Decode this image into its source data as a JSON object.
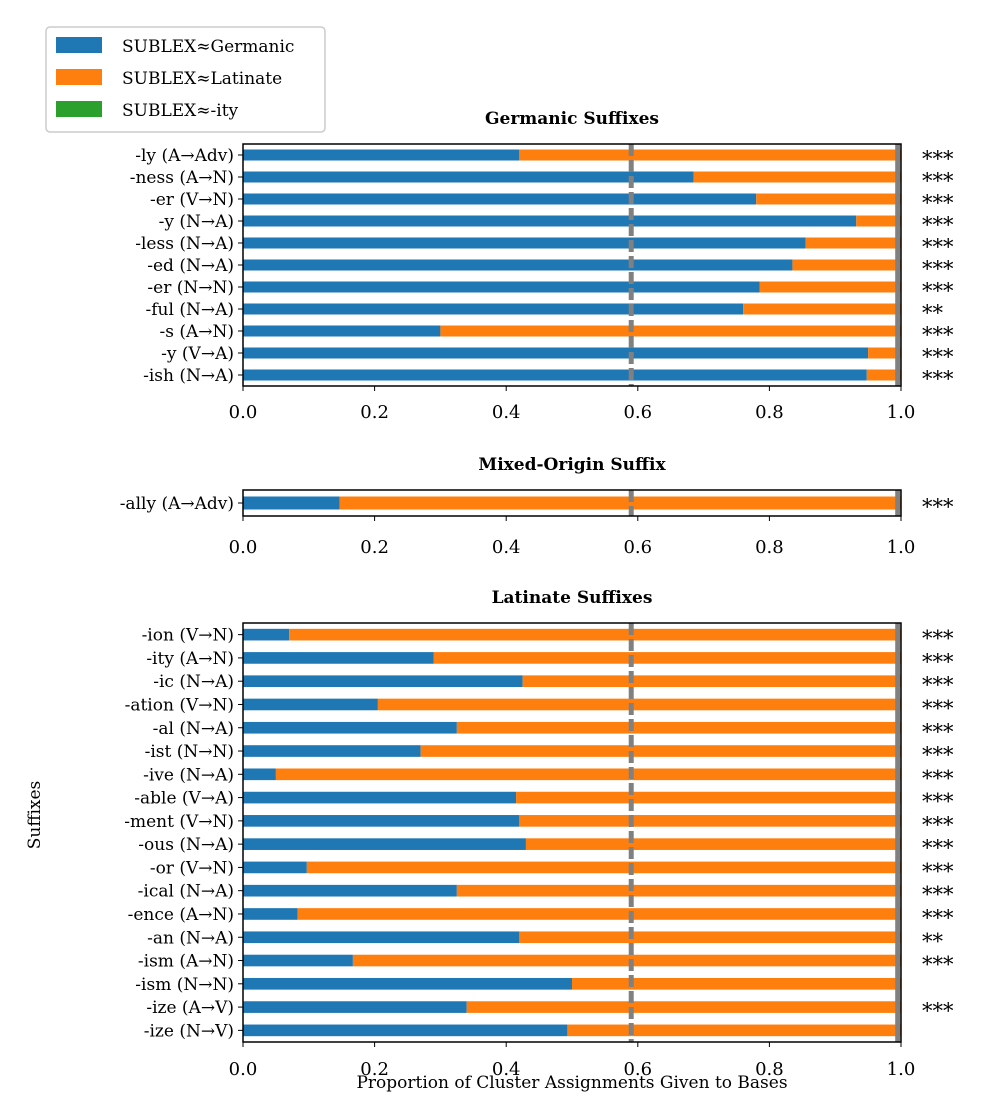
{
  "colors": {
    "germanic": "#1f77b4",
    "latinate": "#ff7f0e",
    "ity": "#2ca02c",
    "reference_line": "#808080"
  },
  "legend": {
    "placement": "top-left",
    "items": [
      {
        "name": "SUBLEX≈Germanic",
        "color": "#1f77b4"
      },
      {
        "name": "SUBLEX≈Latinate",
        "color": "#ff7f0e"
      },
      {
        "name": "SUBLEX≈-ity",
        "color": "#2ca02c"
      }
    ]
  },
  "ylabel": "Suffixes",
  "xlabel": "Proportion of Cluster Assignments Given to Bases",
  "chart_data": [
    {
      "type": "bar",
      "orientation": "horizontal",
      "stacked": true,
      "title": "Germanic Suffixes",
      "xlim": [
        0,
        1
      ],
      "xticks": [
        "0.0",
        "0.2",
        "0.4",
        "0.6",
        "0.8",
        "1.0"
      ],
      "reference_lines": [
        0.59,
        0.995
      ],
      "categories": [
        "-ly (A→Adv)",
        "-ness (A→N)",
        "-er (V→N)",
        "-y (N→A)",
        "-less (N→A)",
        "-ed (N→A)",
        "-er (N→N)",
        "-ful (N→A)",
        "-s (A→N)",
        "-y (V→A)",
        "-ish (N→A)"
      ],
      "significance": [
        "***",
        "***",
        "***",
        "***",
        "***",
        "***",
        "***",
        "**",
        "***",
        "***",
        "***"
      ],
      "series": [
        {
          "name": "SUBLEX≈Germanic",
          "values": [
            0.42,
            0.685,
            0.78,
            0.932,
            0.855,
            0.835,
            0.785,
            0.76,
            0.3,
            0.95,
            0.948
          ]
        },
        {
          "name": "SUBLEX≈Latinate",
          "values": [
            0.58,
            0.315,
            0.22,
            0.068,
            0.145,
            0.165,
            0.215,
            0.24,
            0.7,
            0.05,
            0.052
          ]
        }
      ]
    },
    {
      "type": "bar",
      "orientation": "horizontal",
      "stacked": true,
      "title": "Mixed-Origin Suffix",
      "xlim": [
        0,
        1
      ],
      "xticks": [
        "0.0",
        "0.2",
        "0.4",
        "0.6",
        "0.8",
        "1.0"
      ],
      "reference_lines": [
        0.59,
        0.995
      ],
      "categories": [
        "-ally (A→Adv)"
      ],
      "significance": [
        "***"
      ],
      "series": [
        {
          "name": "SUBLEX≈Germanic",
          "values": [
            0.147
          ]
        },
        {
          "name": "SUBLEX≈Latinate",
          "values": [
            0.853
          ]
        }
      ]
    },
    {
      "type": "bar",
      "orientation": "horizontal",
      "stacked": true,
      "title": "Latinate Suffixes",
      "xlim": [
        0,
        1
      ],
      "xticks": [
        "0.0",
        "0.2",
        "0.4",
        "0.6",
        "0.8",
        "1.0"
      ],
      "reference_lines": [
        0.59,
        0.995
      ],
      "categories": [
        "-ion (V→N)",
        "-ity (A→N)",
        "-ic (N→A)",
        "-ation (V→N)",
        "-al (N→A)",
        "-ist (N→N)",
        "-ive (N→A)",
        "-able (V→A)",
        "-ment (V→N)",
        "-ous (N→A)",
        "-or (V→N)",
        "-ical (N→A)",
        "-ence (A→N)",
        "-an (N→A)",
        "-ism (A→N)",
        "-ism (N→N)",
        "-ize (A→V)",
        "-ize (N→V)"
      ],
      "significance": [
        "***",
        "***",
        "***",
        "***",
        "***",
        "***",
        "***",
        "***",
        "***",
        "***",
        "***",
        "***",
        "***",
        "**",
        "***",
        "",
        "***",
        ""
      ],
      "series": [
        {
          "name": "SUBLEX≈Germanic",
          "values": [
            0.07,
            0.29,
            0.425,
            0.205,
            0.325,
            0.27,
            0.05,
            0.415,
            0.42,
            0.43,
            0.097,
            0.325,
            0.083,
            0.42,
            0.167,
            0.5,
            0.34,
            0.493
          ]
        },
        {
          "name": "SUBLEX≈Latinate",
          "values": [
            0.93,
            0.71,
            0.575,
            0.795,
            0.675,
            0.73,
            0.95,
            0.585,
            0.58,
            0.57,
            0.903,
            0.675,
            0.917,
            0.58,
            0.833,
            0.5,
            0.66,
            0.507
          ]
        }
      ]
    }
  ]
}
